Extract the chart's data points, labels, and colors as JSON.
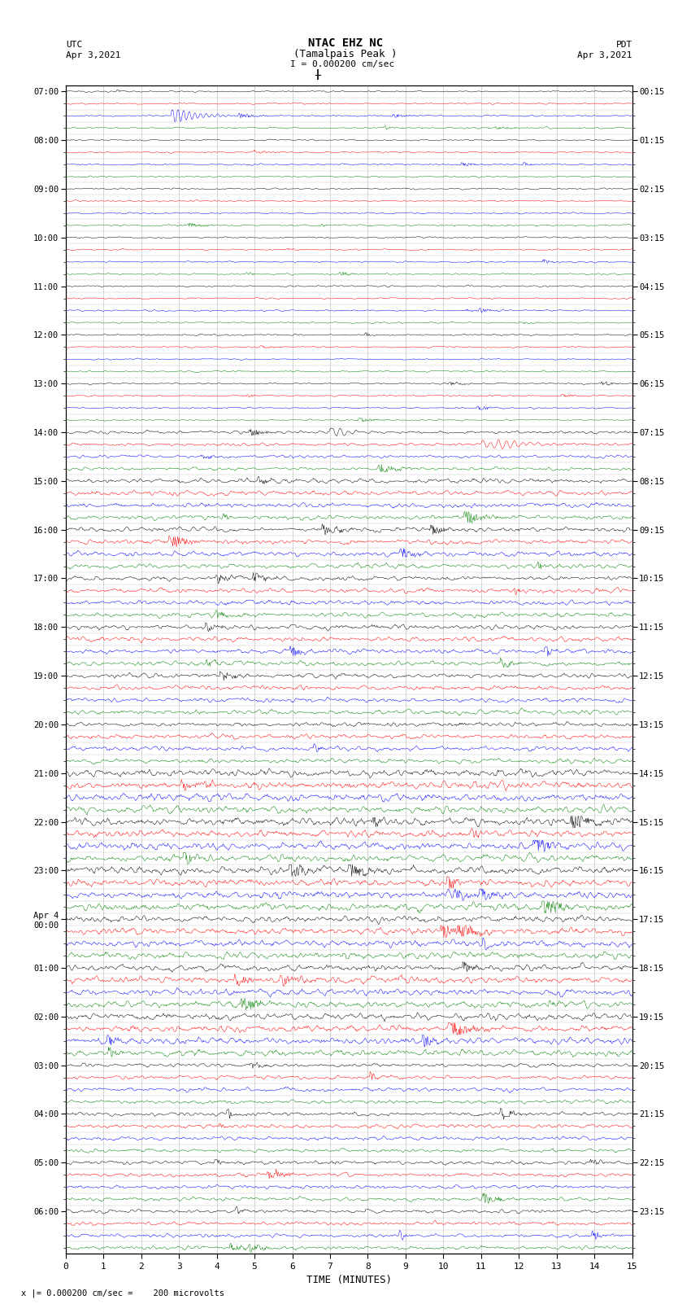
{
  "title_line1": "NTAC EHZ NC",
  "title_line2": "(Tamalpais Peak )",
  "title_line3": "I = 0.000200 cm/sec",
  "left_header1": "UTC",
  "left_header2": "Apr 3,2021",
  "right_header1": "PDT",
  "right_header2": "Apr 3,2021",
  "xlabel": "TIME (MINUTES)",
  "footer": "x |= 0.000200 cm/sec =    200 microvolts",
  "n_traces": 96,
  "minutes_per_trace": 15,
  "utc_labels_major": [
    "07:00",
    "08:00",
    "09:00",
    "10:00",
    "11:00",
    "12:00",
    "13:00",
    "14:00",
    "15:00",
    "16:00",
    "17:00",
    "18:00",
    "19:00",
    "20:00",
    "21:00",
    "22:00",
    "23:00",
    "Apr 4\n00:00",
    "01:00",
    "02:00",
    "03:00",
    "04:00",
    "05:00",
    "06:00"
  ],
  "pdt_labels_major": [
    "00:15",
    "01:15",
    "02:15",
    "03:15",
    "04:15",
    "05:15",
    "06:15",
    "07:15",
    "08:15",
    "09:15",
    "10:15",
    "11:15",
    "12:15",
    "13:15",
    "14:15",
    "15:15",
    "16:15",
    "17:15",
    "18:15",
    "19:15",
    "20:15",
    "21:15",
    "22:15",
    "23:15"
  ],
  "bg_color": "white",
  "trace_color_cycle": [
    "black",
    "red",
    "blue",
    "green"
  ],
  "grid_color": "#888888",
  "border_color": "black"
}
